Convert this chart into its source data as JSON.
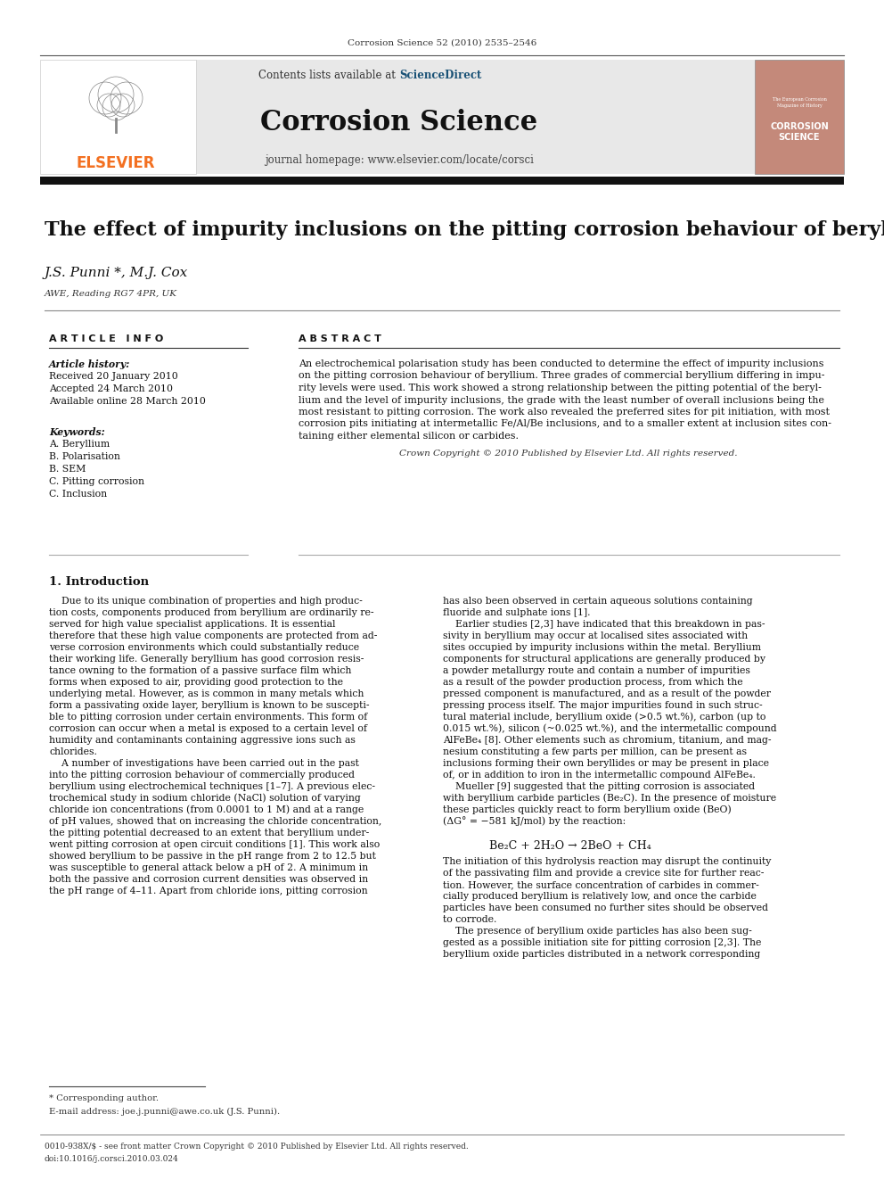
{
  "journal_ref": "Corrosion Science 52 (2010) 2535–2546",
  "journal_name": "Corrosion Science",
  "journal_url": "journal homepage: www.elsevier.com/locate/corsci",
  "sciencedirect_text": "Contents lists available at ",
  "sciencedirect_link": "ScienceDirect",
  "paper_title": "The effect of impurity inclusions on the pitting corrosion behaviour of beryllium",
  "authors": "J.S. Punni *, M.J. Cox",
  "affiliation": "AWE, Reading RG7 4PR, UK",
  "article_info_header": "A R T I C L E   I N F O",
  "abstract_header": "A B S T R A C T",
  "article_history_label": "Article history:",
  "received": "Received 20 January 2010",
  "accepted": "Accepted 24 March 2010",
  "available": "Available online 28 March 2010",
  "keywords_label": "Keywords:",
  "keywords": [
    "A. Beryllium",
    "B. Polarisation",
    "B. SEM",
    "C. Pitting corrosion",
    "C. Inclusion"
  ],
  "abstract_lines": [
    "An electrochemical polarisation study has been conducted to determine the effect of impurity inclusions",
    "on the pitting corrosion behaviour of beryllium. Three grades of commercial beryllium differing in impu-",
    "rity levels were used. This work showed a strong relationship between the pitting potential of the beryl-",
    "lium and the level of impurity inclusions, the grade with the least number of overall inclusions being the",
    "most resistant to pitting corrosion. The work also revealed the preferred sites for pit initiation, with most",
    "corrosion pits initiating at intermetallic Fe/Al/Be inclusions, and to a smaller extent at inclusion sites con-",
    "taining either elemental silicon or carbides."
  ],
  "copyright_text": "Crown Copyright © 2010 Published by Elsevier Ltd. All rights reserved.",
  "section1_header": "1. Introduction",
  "col1_lines": [
    "    Due to its unique combination of properties and high produc-",
    "tion costs, components produced from beryllium are ordinarily re-",
    "served for high value specialist applications. It is essential",
    "therefore that these high value components are protected from ad-",
    "verse corrosion environments which could substantially reduce",
    "their working life. Generally beryllium has good corrosion resis-",
    "tance owning to the formation of a passive surface film which",
    "forms when exposed to air, providing good protection to the",
    "underlying metal. However, as is common in many metals which",
    "form a passivating oxide layer, beryllium is known to be suscepti-",
    "ble to pitting corrosion under certain environments. This form of",
    "corrosion can occur when a metal is exposed to a certain level of",
    "humidity and contaminants containing aggressive ions such as",
    "chlorides.",
    "    A number of investigations have been carried out in the past",
    "into the pitting corrosion behaviour of commercially produced",
    "beryllium using electrochemical techniques [1–7]. A previous elec-",
    "trochemical study in sodium chloride (NaCl) solution of varying",
    "chloride ion concentrations (from 0.0001 to 1 M) and at a range",
    "of pH values, showed that on increasing the chloride concentration,",
    "the pitting potential decreased to an extent that beryllium under-",
    "went pitting corrosion at open circuit conditions [1]. This work also",
    "showed beryllium to be passive in the pH range from 2 to 12.5 but",
    "was susceptible to general attack below a pH of 2. A minimum in",
    "both the passive and corrosion current densities was observed in",
    "the pH range of 4–11. Apart from chloride ions, pitting corrosion"
  ],
  "col2_lines": [
    "has also been observed in certain aqueous solutions containing",
    "fluoride and sulphate ions [1].",
    "    Earlier studies [2,3] have indicated that this breakdown in pas-",
    "sivity in beryllium may occur at localised sites associated with",
    "sites occupied by impurity inclusions within the metal. Beryllium",
    "components for structural applications are generally produced by",
    "a powder metallurgy route and contain a number of impurities",
    "as a result of the powder production process, from which the",
    "pressed component is manufactured, and as a result of the powder",
    "pressing process itself. The major impurities found in such struc-",
    "tural material include, beryllium oxide (>0.5 wt.%), carbon (up to",
    "0.015 wt.%), silicon (~0.025 wt.%), and the intermetallic compound",
    "AlFeBe₄ [8]. Other elements such as chromium, titanium, and mag-",
    "nesium constituting a few parts per million, can be present as",
    "inclusions forming their own beryllides or may be present in place",
    "of, or in addition to iron in the intermetallic compound AlFeBe₄.",
    "    Mueller [9] suggested that the pitting corrosion is associated",
    "with beryllium carbide particles (Be₂C). In the presence of moisture",
    "these particles quickly react to form beryllium oxide (BeO)",
    "(ΔG° = −581 kJ/mol) by the reaction:"
  ],
  "reaction": "Be₂C + 2H₂O → 2BeO + CH₄",
  "after_reaction_lines": [
    "The initiation of this hydrolysis reaction may disrupt the continuity",
    "of the passivating film and provide a crevice site for further reac-",
    "tion. However, the surface concentration of carbides in commer-",
    "cially produced beryllium is relatively low, and once the carbide",
    "particles have been consumed no further sites should be observed",
    "to corrode.",
    "    The presence of beryllium oxide particles has also been sug-",
    "gested as a possible initiation site for pitting corrosion [2,3]. The",
    "beryllium oxide particles distributed in a network corresponding"
  ],
  "footnote_star": "* Corresponding author.",
  "footnote_email": "E-mail address: joe.j.punni@awe.co.uk (J.S. Punni).",
  "footer_line1": "0010-938X/$ - see front matter Crown Copyright © 2010 Published by Elsevier Ltd. All rights reserved.",
  "footer_line2": "doi:10.1016/j.corsci.2010.03.024",
  "bg_color": "#ffffff",
  "header_bar_color": "#111111",
  "elsevier_orange": "#F37021",
  "sciencedirect_blue": "#1a5276",
  "journal_bg": "#e8e8e8",
  "cover_bg": "#c4897a"
}
